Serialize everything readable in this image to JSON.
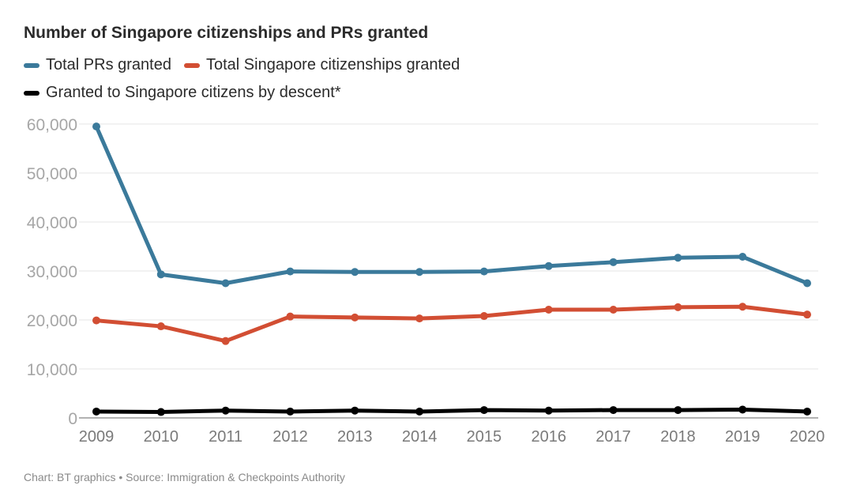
{
  "chart_data": {
    "type": "line",
    "title": "Number of Singapore citizenships and PRs granted",
    "categories": [
      "2009",
      "2010",
      "2011",
      "2012",
      "2013",
      "2014",
      "2015",
      "2016",
      "2017",
      "2018",
      "2019",
      "2020"
    ],
    "series": [
      {
        "name": "Total PRs granted",
        "color": "#3b7a9b",
        "values": [
          59500,
          29300,
          27500,
          29900,
          29800,
          29800,
          29900,
          31000,
          31800,
          32700,
          32900,
          27500
        ]
      },
      {
        "name": "Total Singapore citizenships granted",
        "color": "#d24e33",
        "values": [
          19900,
          18700,
          15700,
          20700,
          20500,
          20300,
          20800,
          22100,
          22100,
          22600,
          22700,
          21100
        ]
      },
      {
        "name": "Granted to Singapore citizens by descent*",
        "color": "#000000",
        "values": [
          1300,
          1200,
          1500,
          1300,
          1500,
          1300,
          1600,
          1500,
          1600,
          1600,
          1700,
          1300
        ]
      }
    ],
    "yticks": [
      "0",
      "10,000",
      "20,000",
      "30,000",
      "40,000",
      "50,000",
      "60,000"
    ],
    "ylim": [
      0,
      60000
    ],
    "grid": true,
    "legend_position": "top-left"
  },
  "footer": "Chart: BT graphics • Source: Immigration & Checkpoints Authority"
}
